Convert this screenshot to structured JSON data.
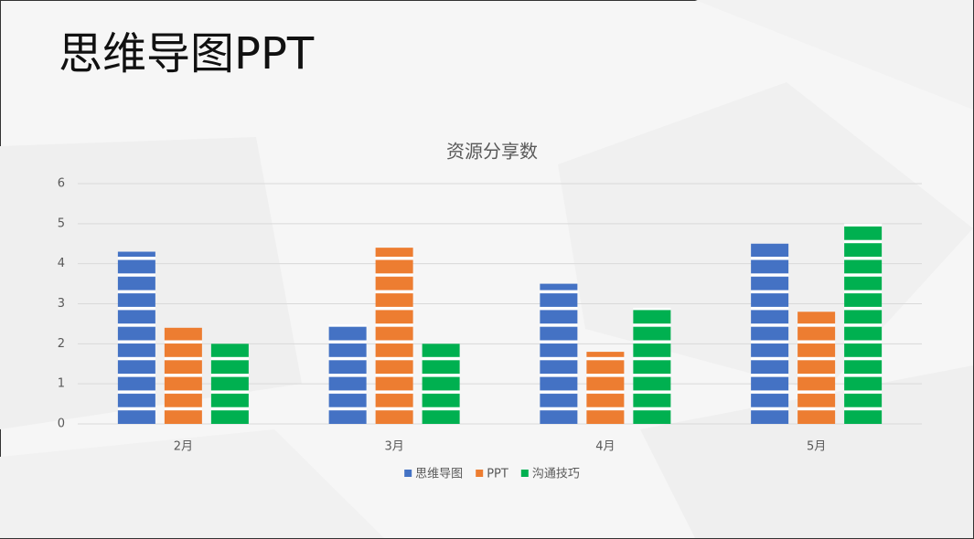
{
  "slide_title": "思维导图PPT",
  "chart_data": {
    "type": "bar",
    "title": "资源分享数",
    "categories": [
      "2月",
      "3月",
      "4月",
      "5月"
    ],
    "series": [
      {
        "name": "思维导图",
        "color": "#4472c4",
        "values": [
          4.3,
          2.5,
          3.5,
          4.5
        ]
      },
      {
        "name": "PPT",
        "color": "#ed7d31",
        "values": [
          2.4,
          4.4,
          1.8,
          2.8
        ]
      },
      {
        "name": "沟通技巧",
        "color": "#00b050",
        "values": [
          2,
          2,
          2.9,
          5
        ]
      }
    ],
    "ylim": [
      0,
      6
    ],
    "yticks": [
      0,
      1,
      2,
      3,
      4,
      5,
      6
    ],
    "grid": true,
    "legend": "bottom"
  }
}
